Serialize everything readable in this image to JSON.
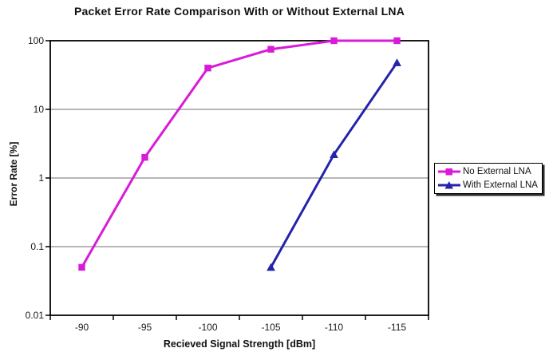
{
  "chart_data": {
    "type": "line",
    "title": "Packet Error Rate Comparison With or Without External LNA",
    "xlabel": "Recieved Signal Strength [dBm]",
    "ylabel": "Error Rate [%]",
    "categories": [
      "-90",
      "-95",
      "-100",
      "-105",
      "-110",
      "-115"
    ],
    "y_scale": "log",
    "ylim": [
      0.01,
      100
    ],
    "y_ticks": [
      "100",
      "10",
      "1",
      "0.1",
      "0.01"
    ],
    "y_tick_values": [
      100,
      10,
      1,
      0.1,
      0.01
    ],
    "gridlines": "horizontal major only",
    "legend_position": "right",
    "series": [
      {
        "name": "No External LNA",
        "color": "#D81BD8",
        "marker": "square",
        "values": [
          0.05,
          2,
          40,
          75,
          100,
          100
        ]
      },
      {
        "name": "With External LNA",
        "color": "#2323AB",
        "marker": "triangle",
        "values": [
          null,
          null,
          null,
          0.05,
          2.2,
          48
        ]
      }
    ],
    "colors": {
      "plot_border": "#000000",
      "gridline": "#8c8c8c",
      "tick_text": "#1a1a1a",
      "background": "#ffffff"
    }
  }
}
